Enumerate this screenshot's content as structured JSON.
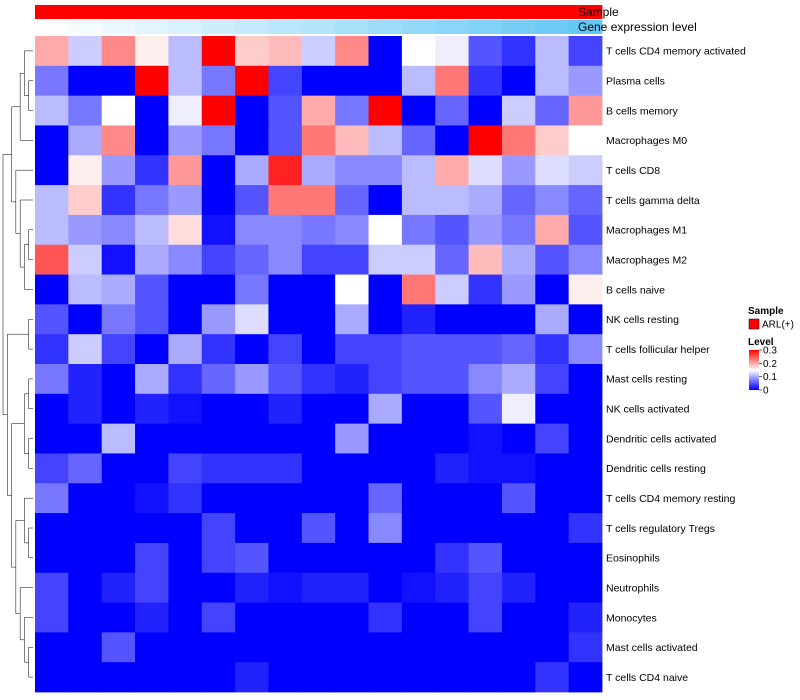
{
  "chart_data": {
    "type": "heatmap",
    "title": "",
    "annotation_tracks": [
      {
        "name": "Sample",
        "values": [
          "ARL(+)",
          "ARL(+)",
          "ARL(+)",
          "ARL(+)",
          "ARL(+)",
          "ARL(+)",
          "ARL(+)",
          "ARL(+)",
          "ARL(+)",
          "ARL(+)",
          "ARL(+)",
          "ARL(+)",
          "ARL(+)",
          "ARL(+)",
          "ARL(+)",
          "ARL(+)",
          "ARL(+)"
        ]
      },
      {
        "name": "Gene expression level",
        "values": [
          0.0,
          0.06,
          0.13,
          0.19,
          0.25,
          0.31,
          0.38,
          0.44,
          0.5,
          0.56,
          0.63,
          0.69,
          0.75,
          0.81,
          0.88,
          0.94,
          1.0
        ]
      }
    ],
    "rows": [
      "T cells CD4 memory activated",
      "Plasma cells",
      "B cells memory",
      "Macrophages M0",
      "T cells CD8",
      "T cells gamma delta",
      "Macrophages M1",
      "Macrophages M2",
      "B cells naive",
      "NK cells resting",
      "T cells follicular helper",
      "Mast cells resting",
      "NK cells activated",
      "Dendritic cells activated",
      "Dendritic cells resting",
      "T cells CD4 memory resting",
      "T cells regulatory  Tregs",
      "Eosinophils",
      "Neutrophils",
      "Monocytes",
      "Mast cells activated",
      "T cells CD4 naive"
    ],
    "n_columns": 17,
    "values": [
      [
        0.2,
        0.12,
        0.22,
        0.16,
        0.11,
        0.3,
        0.18,
        0.19,
        0.12,
        0.22,
        0.0,
        0.15,
        0.14,
        0.05,
        0.03,
        0.11,
        0.04
      ],
      [
        0.07,
        0.0,
        0.0,
        0.3,
        0.11,
        0.07,
        0.3,
        0.04,
        0.0,
        0.0,
        0.0,
        0.11,
        0.23,
        0.03,
        0.0,
        0.11,
        0.09
      ],
      [
        0.11,
        0.07,
        0.15,
        0.0,
        0.14,
        0.3,
        0.0,
        0.05,
        0.2,
        0.07,
        0.3,
        0.0,
        0.06,
        0.0,
        0.12,
        0.06,
        0.21
      ],
      [
        0.0,
        0.1,
        0.22,
        0.0,
        0.09,
        0.07,
        0.0,
        0.05,
        0.23,
        0.19,
        0.11,
        0.06,
        0.0,
        0.3,
        0.23,
        0.18,
        0.15
      ],
      [
        0.0,
        0.16,
        0.09,
        0.03,
        0.21,
        0.0,
        0.1,
        0.28,
        0.1,
        0.08,
        0.08,
        0.11,
        0.2,
        0.13,
        0.09,
        0.13,
        0.12
      ],
      [
        0.11,
        0.18,
        0.03,
        0.07,
        0.09,
        0.0,
        0.05,
        0.23,
        0.23,
        0.06,
        0.0,
        0.11,
        0.11,
        0.1,
        0.06,
        0.08,
        0.06
      ],
      [
        0.11,
        0.09,
        0.08,
        0.11,
        0.17,
        0.01,
        0.08,
        0.08,
        0.07,
        0.08,
        0.15,
        0.07,
        0.05,
        0.09,
        0.07,
        0.2,
        0.05
      ],
      [
        0.25,
        0.12,
        0.01,
        0.1,
        0.08,
        0.04,
        0.06,
        0.08,
        0.04,
        0.04,
        0.12,
        0.12,
        0.06,
        0.19,
        0.1,
        0.05,
        0.08
      ],
      [
        0.0,
        0.11,
        0.1,
        0.05,
        0.0,
        0.0,
        0.07,
        0.0,
        0.0,
        0.15,
        0.0,
        0.23,
        0.12,
        0.03,
        0.09,
        0.0,
        0.16
      ],
      [
        0.05,
        0.0,
        0.07,
        0.05,
        0.0,
        0.09,
        0.13,
        0.0,
        0.0,
        0.1,
        0.0,
        0.02,
        0.0,
        0.0,
        0.0,
        0.1,
        0.0
      ],
      [
        0.03,
        0.12,
        0.04,
        0.0,
        0.1,
        0.03,
        0.0,
        0.04,
        0.0,
        0.04,
        0.04,
        0.05,
        0.05,
        0.05,
        0.06,
        0.03,
        0.08
      ],
      [
        0.07,
        0.02,
        0.0,
        0.1,
        0.03,
        0.06,
        0.09,
        0.05,
        0.03,
        0.02,
        0.04,
        0.05,
        0.05,
        0.08,
        0.1,
        0.04,
        0.0
      ],
      [
        0.0,
        0.02,
        0.0,
        0.02,
        0.01,
        0.0,
        0.0,
        0.02,
        0.0,
        0.0,
        0.1,
        0.0,
        0.0,
        0.05,
        0.14,
        0.0,
        0.0
      ],
      [
        0.0,
        0.0,
        0.11,
        0.0,
        0.0,
        0.0,
        0.0,
        0.0,
        0.0,
        0.09,
        0.0,
        0.0,
        0.0,
        0.01,
        0.0,
        0.04,
        0.0
      ],
      [
        0.04,
        0.06,
        0.0,
        0.0,
        0.04,
        0.03,
        0.03,
        0.03,
        0.0,
        0.0,
        0.0,
        0.0,
        0.02,
        0.01,
        0.01,
        0.0,
        0.0
      ],
      [
        0.07,
        0.0,
        0.0,
        0.01,
        0.03,
        0.0,
        0.0,
        0.0,
        0.0,
        0.0,
        0.06,
        0.0,
        0.0,
        0.0,
        0.05,
        0.0,
        0.0
      ],
      [
        0.0,
        0.0,
        0.0,
        0.0,
        0.0,
        0.04,
        0.0,
        0.0,
        0.05,
        0.0,
        0.08,
        0.0,
        0.0,
        0.0,
        0.0,
        0.0,
        0.03
      ],
      [
        0.0,
        0.0,
        0.0,
        0.04,
        0.0,
        0.04,
        0.05,
        0.0,
        0.0,
        0.0,
        0.0,
        0.0,
        0.03,
        0.05,
        0.0,
        0.0,
        0.0
      ],
      [
        0.04,
        0.0,
        0.02,
        0.04,
        0.0,
        0.0,
        0.02,
        0.01,
        0.02,
        0.02,
        0.0,
        0.01,
        0.02,
        0.04,
        0.02,
        0.0,
        0.0
      ],
      [
        0.04,
        0.0,
        0.0,
        0.02,
        0.0,
        0.04,
        0.0,
        0.0,
        0.0,
        0.0,
        0.03,
        0.0,
        0.0,
        0.04,
        0.0,
        0.0,
        0.02
      ],
      [
        0.0,
        0.0,
        0.05,
        0.0,
        0.0,
        0.0,
        0.0,
        0.0,
        0.0,
        0.0,
        0.0,
        0.0,
        0.0,
        0.0,
        0.0,
        0.0,
        0.03
      ],
      [
        0.0,
        0.0,
        0.0,
        0.0,
        0.0,
        0.0,
        0.02,
        0.0,
        0.0,
        0.0,
        0.0,
        0.0,
        0.0,
        0.0,
        0.0,
        0.03,
        0.0
      ]
    ],
    "color_scale": {
      "low": "#0000ff",
      "mid": "#ffffff",
      "high": "#ff0000",
      "min": 0,
      "max": 0.3
    },
    "legend": {
      "sample_title": "Sample",
      "sample_entry": "ARL(+)",
      "sample_color": "#ff0000",
      "level_title": "Level",
      "level_ticks": [
        {
          "value": 0.3,
          "label": "0.3"
        },
        {
          "value": 0.2,
          "label": "0.2"
        },
        {
          "value": 0.1,
          "label": "0.1"
        },
        {
          "value": 0,
          "label": "0"
        }
      ],
      "position": "right"
    },
    "row_dendrogram": {
      "side": "left",
      "tree": [
        [
          [
            [
              0,
              [
                1,
                2
              ]
            ],
            3
          ],
          [
            4,
            [
              5,
              [
                [
                  6,
                  7
                ],
                8
              ]
            ]
          ]
        ],
        [
          [
            9,
            10
          ],
          [
            [
              [
                11,
                12
              ],
              [
                13,
                14
              ]
            ],
            [
              [
                15,
                [
                  16,
                  17
                ]
              ],
              [
                18,
                [
                  19,
                  [
                    20,
                    21
                  ]
                ]
              ]
            ]
          ]
        ]
      ]
    }
  }
}
